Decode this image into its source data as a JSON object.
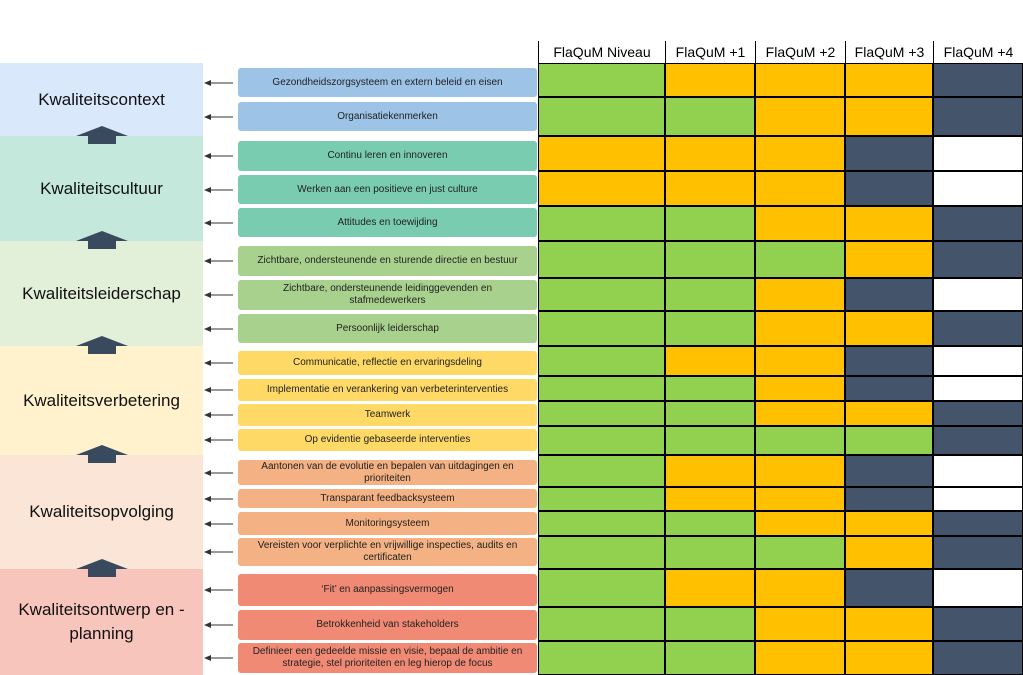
{
  "columns": [
    "FlaQuM Niveau",
    "FlaQuM +1",
    "FlaQuM +2",
    "FlaQuM +3",
    "FlaQuM +4"
  ],
  "status_colors": {
    "G": "#92D050",
    "O": "#FFC000",
    "D": "#44546A",
    "W": "#FFFFFF"
  },
  "sections": [
    {
      "name": "Kwaliteitscontext",
      "band_color": "#DAE8FC",
      "item_color": "#9DC3E6",
      "items": [
        {
          "label": "Gezondheidszorgsysteem en extern beleid en eisen",
          "cells": [
            "G",
            "O",
            "O",
            "O",
            "D"
          ]
        },
        {
          "label": "Organisatiekenmerken",
          "cells": [
            "G",
            "G",
            "O",
            "O",
            "D"
          ]
        }
      ]
    },
    {
      "name": "Kwaliteitscultuur",
      "band_color": "#C4E8DC",
      "item_color": "#7ACCB0",
      "items": [
        {
          "label": "Continu leren en innoveren",
          "cells": [
            "O",
            "O",
            "O",
            "D",
            "W"
          ]
        },
        {
          "label": "Werken aan een positieve en just culture",
          "cells": [
            "O",
            "O",
            "O",
            "D",
            "W"
          ]
        },
        {
          "label": "Attitudes en toewijding",
          "cells": [
            "G",
            "G",
            "O",
            "O",
            "D"
          ]
        }
      ]
    },
    {
      "name": "Kwaliteitsleiderschap",
      "band_color": "#E2F0D9",
      "item_color": "#A9D18E",
      "items": [
        {
          "label": "Zichtbare, ondersteunende en sturende directie en bestuur",
          "cells": [
            "G",
            "G",
            "G",
            "O",
            "D"
          ]
        },
        {
          "label": "Zichtbare, ondersteunende leidinggevenden  en stafmedewerkers",
          "cells": [
            "G",
            "G",
            "O",
            "D",
            "W"
          ]
        },
        {
          "label": "Persoonlijk leiderschap",
          "cells": [
            "G",
            "G",
            "O",
            "O",
            "D"
          ]
        }
      ]
    },
    {
      "name": "Kwaliteitsverbetering",
      "band_color": "#FFF2CC",
      "item_color": "#FFD966",
      "items": [
        {
          "label": "Communicatie, reflectie en ervaringsdeling",
          "cells": [
            "G",
            "O",
            "O",
            "D",
            "W"
          ]
        },
        {
          "label": "Implementatie en verankering van verbeterinterventies",
          "cells": [
            "G",
            "G",
            "O",
            "D",
            "W"
          ]
        },
        {
          "label": "Teamwerk",
          "cells": [
            "G",
            "G",
            "O",
            "O",
            "D"
          ]
        },
        {
          "label": "Op evidentie gebaseerde interventies",
          "cells": [
            "G",
            "G",
            "G",
            "G",
            "D"
          ]
        }
      ]
    },
    {
      "name": "Kwaliteitsopvolging",
      "band_color": "#FBE5D6",
      "item_color": "#F4B183",
      "items": [
        {
          "label": "Aantonen van de evolutie en bepalen van uitdagingen en prioriteiten",
          "cells": [
            "G",
            "O",
            "O",
            "D",
            "W"
          ]
        },
        {
          "label": "Transparant feedbacksysteem",
          "cells": [
            "G",
            "O",
            "O",
            "D",
            "W"
          ]
        },
        {
          "label": "Monitoringsysteem",
          "cells": [
            "G",
            "G",
            "O",
            "O",
            "D"
          ]
        },
        {
          "label": "Vereisten voor verplichte en vrijwillige inspecties, audits en certificaten",
          "cells": [
            "G",
            "G",
            "G",
            "O",
            "D"
          ]
        }
      ]
    },
    {
      "name": "Kwaliteitsontwerp en -planning",
      "band_color": "#F8C5BC",
      "item_color": "#F08A74",
      "items": [
        {
          "label": "‘Fit’ en aanpassingsvermogen",
          "cells": [
            "G",
            "O",
            "O",
            "D",
            "W"
          ]
        },
        {
          "label": "Betrokkenheid van stakeholders",
          "cells": [
            "G",
            "G",
            "O",
            "O",
            "D"
          ]
        },
        {
          "label": "Definieer een gedeelde missie en visie, bepaal de ambitie en strategie, stel prioriteiten en leg hierop de focus",
          "cells": [
            "G",
            "G",
            "O",
            "O",
            "D"
          ]
        }
      ]
    }
  ]
}
